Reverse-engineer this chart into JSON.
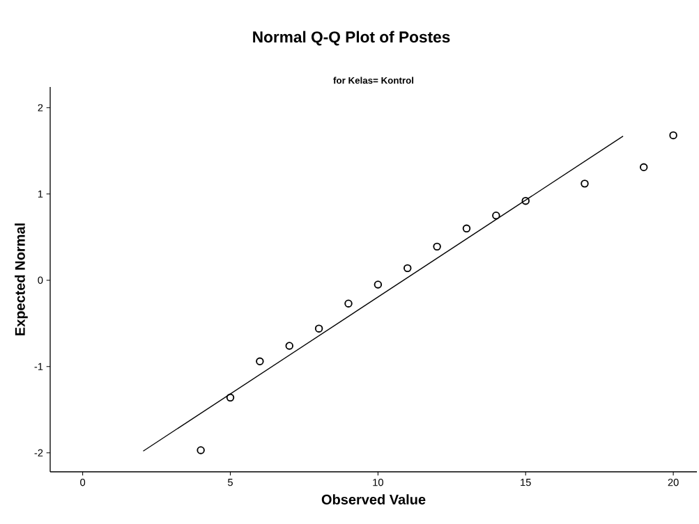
{
  "chart_data": {
    "type": "scatter",
    "title": "Normal Q-Q Plot of Postes",
    "subtitle": "for Kelas= Kontrol",
    "xlabel": "Observed Value",
    "ylabel": "Expected Normal",
    "series": [
      {
        "color": "#000000",
        "x": [
          4,
          5,
          6,
          7,
          8,
          9,
          10,
          11,
          12,
          13,
          14,
          15,
          17,
          19,
          20
        ],
        "values": [
          -1.97,
          -1.36,
          -0.94,
          -0.76,
          -0.56,
          -0.27,
          -0.05,
          0.14,
          0.39,
          0.6,
          0.75,
          0.92,
          1.12,
          1.31,
          1.68
        ]
      },
      {
        "type": "line",
        "marker": "none",
        "color": "#000000",
        "x": [
          2.05,
          18.3
        ],
        "values": [
          -1.98,
          1.67
        ]
      }
    ],
    "marker": "circle",
    "grid": false,
    "xlim": [
      -1.1,
      20.8
    ],
    "ylim": [
      -2.22,
      2.24
    ],
    "xticks": [
      0,
      5,
      10,
      15,
      20
    ],
    "yticks": [
      -2,
      -1,
      0,
      1,
      2
    ]
  }
}
